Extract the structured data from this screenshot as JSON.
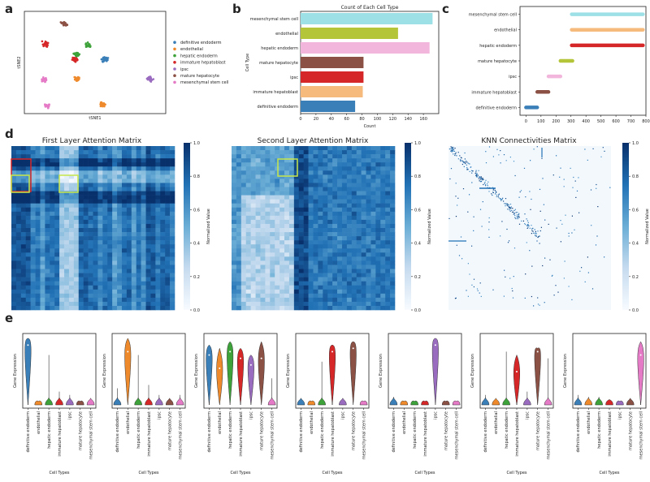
{
  "panel_letters": {
    "a": "a",
    "b": "b",
    "c": "c",
    "d": "d",
    "e": "e"
  },
  "colors": {
    "definitive endoderm": "#3a7fb8",
    "endothelial": "#ef8a2c",
    "hepatic endoderm": "#3ea23a",
    "immature hepatoblast": "#d62728",
    "ipsc": "#9a6cc0",
    "mature hepatocyte": "#8c5145",
    "mesenchymal stem cell": "#e57bc7"
  },
  "chart_data": [
    {
      "id": "a",
      "type": "scatter",
      "xlabel": "tSNE1",
      "ylabel": "tSNE2",
      "legend": [
        "definitive endoderm",
        "endothelial",
        "hepatic endoderm",
        "immature hepatoblast",
        "ipsc",
        "mature hepatocyte",
        "mesenchymal stem cell"
      ],
      "clusters": [
        {
          "name": "mature hepatocyte",
          "cx": 28,
          "cy": 12
        },
        {
          "name": "immature hepatoblast",
          "cx": 15,
          "cy": 32
        },
        {
          "name": "hepatic endoderm",
          "cx": 45,
          "cy": 33
        },
        {
          "name": "hepatic endoderm",
          "cx": 37,
          "cy": 42
        },
        {
          "name": "immature hepatoblast",
          "cx": 36,
          "cy": 47
        },
        {
          "name": "definitive endoderm",
          "cx": 57,
          "cy": 47
        },
        {
          "name": "mesenchymal stem cell",
          "cx": 14,
          "cy": 67
        },
        {
          "name": "endothelial",
          "cx": 37,
          "cy": 66
        },
        {
          "name": "ipsc",
          "cx": 89,
          "cy": 66
        },
        {
          "name": "mesenchymal stem cell",
          "cx": 16,
          "cy": 92
        },
        {
          "name": "endothelial",
          "cx": 55,
          "cy": 91
        }
      ]
    },
    {
      "id": "b",
      "type": "bar",
      "orientation": "horizontal",
      "title": "Count of Each Cell Type",
      "xlabel": "Count",
      "ylabel": "Cell Type",
      "categories": [
        "mesenchymal stem cell",
        "endothelial",
        "hepatic endoderm",
        "mature hepatocyte",
        "ipsc",
        "immature hepatoblast",
        "definitive endoderm"
      ],
      "values": [
        172,
        127,
        168,
        82,
        82,
        81,
        71
      ],
      "xticks": [
        0,
        20,
        40,
        60,
        80,
        100,
        120,
        140,
        160
      ],
      "xlim": [
        0,
        180
      ]
    },
    {
      "id": "c",
      "type": "range",
      "categories": [
        "mesenchymal stem cell",
        "endothelial",
        "hepatic endoderm",
        "mature hepatocyte",
        "ipsc",
        "immature hepatoblast",
        "definitive endoderm"
      ],
      "ranges": [
        [
          305,
          780
        ],
        [
          305,
          780
        ],
        [
          305,
          780
        ],
        [
          230,
          310
        ],
        [
          150,
          230
        ],
        [
          75,
          150
        ],
        [
          0,
          75
        ]
      ],
      "xticks": [
        0,
        100,
        200,
        300,
        400,
        500,
        600,
        700,
        800
      ],
      "xlim": [
        -40,
        800
      ]
    },
    {
      "id": "d1",
      "type": "heatmap",
      "title": "First Layer Attention Matrix",
      "colorbar_label": "Normalized Value",
      "colorbar_ticks": [
        "0.0",
        "0.2",
        "0.4",
        "0.6",
        "0.8",
        "1.0"
      ]
    },
    {
      "id": "d2",
      "type": "heatmap",
      "title": "Second Layer Attention Matrix",
      "colorbar_label": "Normalized Value",
      "colorbar_ticks": [
        "0.0",
        "0.2",
        "0.4",
        "0.6",
        "0.8",
        "1.0"
      ]
    },
    {
      "id": "d3",
      "type": "heatmap",
      "title": "KNN Connectivities Matrix",
      "colorbar_label": "Normalized Value",
      "colorbar_ticks": [
        "0.0",
        "0.2",
        "0.4",
        "0.6",
        "0.8",
        "1.0"
      ]
    },
    {
      "id": "e",
      "type": "violin",
      "ylabel": "Gene Expression",
      "xlabel": "Cell Types",
      "categories": [
        "definitive endoderm",
        "endothelial",
        "hepatic endoderm",
        "immature hepatoblast",
        "ipsc",
        "mature hepatocyte",
        "mesenchymal stem cell"
      ],
      "panels": [
        {
          "high": [
            1.0,
            0.05,
            0.75,
            0.2,
            0.15,
            0.05,
            0.1
          ],
          "median": [
            0.9,
            0.0,
            0.0,
            0.0,
            0.0,
            0.0,
            0.0
          ]
        },
        {
          "high": [
            0.25,
            1.0,
            0.75,
            0.3,
            0.15,
            0.1,
            0.15
          ],
          "median": [
            0.0,
            0.8,
            0.0,
            0.0,
            0.0,
            0.0,
            0.0
          ]
        },
        {
          "high": [
            0.9,
            0.85,
            0.95,
            0.85,
            0.75,
            0.95,
            0.4
          ],
          "median": [
            0.75,
            0.55,
            0.8,
            0.7,
            0.6,
            0.7,
            0.0
          ]
        },
        {
          "high": [
            0.1,
            0.05,
            0.65,
            0.9,
            0.1,
            0.95,
            0.05
          ],
          "median": [
            0.0,
            0.0,
            0.0,
            0.8,
            0.0,
            0.85,
            0.0
          ]
        },
        {
          "high": [
            0.12,
            0.05,
            0.05,
            0.05,
            1.0,
            0.05,
            0.05
          ],
          "median": [
            0.0,
            0.0,
            0.0,
            0.0,
            0.9,
            0.0,
            0.0
          ]
        },
        {
          "high": [
            0.15,
            0.1,
            0.8,
            0.75,
            0.2,
            0.85,
            0.7
          ],
          "median": [
            0.0,
            0.0,
            0.0,
            0.5,
            0.0,
            0.8,
            0.0
          ]
        },
        {
          "high": [
            0.15,
            0.12,
            0.12,
            0.08,
            0.05,
            0.1,
            0.95
          ],
          "median": [
            0.0,
            0.0,
            0.0,
            0.0,
            0.0,
            0.0,
            0.75
          ]
        }
      ]
    }
  ]
}
